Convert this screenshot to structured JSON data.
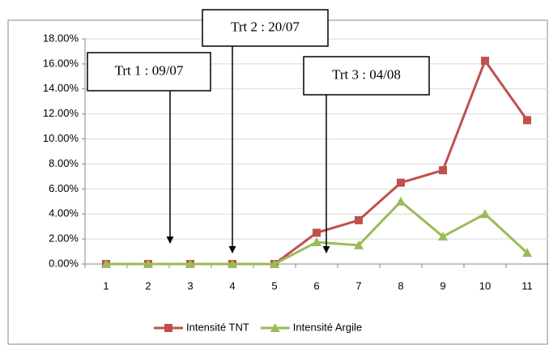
{
  "chart_data": {
    "type": "line",
    "categories": [
      "1",
      "2",
      "3",
      "4",
      "5",
      "6",
      "7",
      "8",
      "9",
      "10",
      "11"
    ],
    "series": [
      {
        "name": "Intensité TNT",
        "color": "#c0504d",
        "marker": "square",
        "values": [
          0,
          0,
          0,
          0,
          0,
          2.5,
          3.5,
          6.5,
          7.5,
          16.25,
          11.5
        ]
      },
      {
        "name": "Intensité Argile",
        "color": "#9bbb59",
        "marker": "triangle",
        "values": [
          0,
          0,
          0,
          0,
          0,
          1.75,
          1.5,
          5.0,
          2.2,
          4.0,
          0.9
        ]
      }
    ],
    "ylim": [
      0,
      18
    ],
    "yticks": [
      {
        "value": 0,
        "label": "0.00%"
      },
      {
        "value": 2,
        "label": "2.00%"
      },
      {
        "value": 4,
        "label": "4.00%"
      },
      {
        "value": 6,
        "label": "6.00%"
      },
      {
        "value": 8,
        "label": "8.00%"
      },
      {
        "value": 10,
        "label": "10.00%"
      },
      {
        "value": 12,
        "label": "12.00%"
      },
      {
        "value": 14,
        "label": "14.00%"
      },
      {
        "value": 16,
        "label": "16.00%"
      },
      {
        "value": 18,
        "label": "18.00%"
      }
    ],
    "grid": true,
    "legend": "bottom",
    "annotations": [
      "Trt 1 : 09/07",
      "Trt 2 : 20/07",
      "Trt 3 : 04/08"
    ]
  }
}
